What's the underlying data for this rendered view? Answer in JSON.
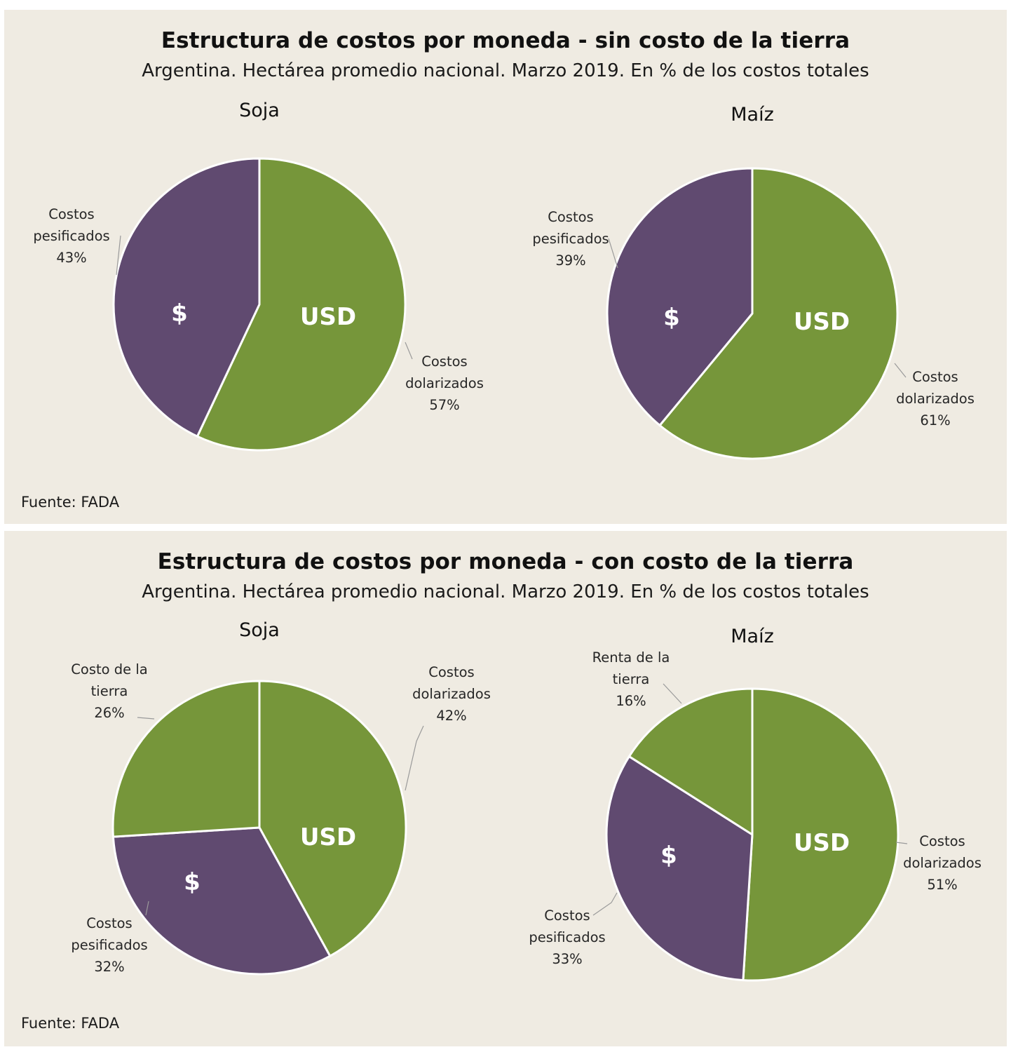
{
  "panels": [
    {
      "title": "Estructura de costos por moneda - sin costo de la tierra",
      "subtitle": "Argentina. Hectárea promedio nacional. Marzo 2019. En % de los costos totales",
      "source": "Fuente: FADA"
    },
    {
      "title": "Estructura de costos por moneda - con costo de la tierra",
      "subtitle": "Argentina. Hectárea promedio nacional. Marzo 2019. En % de los costos totales",
      "source": "Fuente: FADA"
    }
  ],
  "colors": {
    "green": "#76963a",
    "purple": "#604a70",
    "panel_bg": "#efebe2"
  },
  "chart_data": [
    {
      "type": "pie",
      "panel": 0,
      "title": "Soja",
      "slices": [
        {
          "label": [
            "Costos",
            "dolarizados",
            "57%"
          ],
          "value": 57,
          "color": "green",
          "mark": "USD"
        },
        {
          "label": [
            "Costos",
            "pesificados",
            "43%"
          ],
          "value": 43,
          "color": "purple",
          "mark": "$"
        }
      ]
    },
    {
      "type": "pie",
      "panel": 0,
      "title": "Maíz",
      "slices": [
        {
          "label": [
            "Costos",
            "dolarizados",
            "61%"
          ],
          "value": 61,
          "color": "green",
          "mark": "USD"
        },
        {
          "label": [
            "Costos",
            "pesificados",
            "39%"
          ],
          "value": 39,
          "color": "purple",
          "mark": "$"
        }
      ]
    },
    {
      "type": "pie",
      "panel": 1,
      "title": "Soja",
      "slices": [
        {
          "label": [
            "Costos",
            "dolarizados",
            "42%"
          ],
          "value": 42,
          "color": "green",
          "mark": "USD"
        },
        {
          "label": [
            "Costos",
            "pesificados",
            "32%"
          ],
          "value": 32,
          "color": "purple",
          "mark": "$"
        },
        {
          "label": [
            "Costo de la",
            "tierra",
            "26%"
          ],
          "value": 26,
          "color": "green",
          "mark": ""
        }
      ]
    },
    {
      "type": "pie",
      "panel": 1,
      "title": "Maíz",
      "slices": [
        {
          "label": [
            "Costos",
            "dolarizados",
            "51%"
          ],
          "value": 51,
          "color": "green",
          "mark": "USD"
        },
        {
          "label": [
            "Costos",
            "pesificados",
            "33%"
          ],
          "value": 33,
          "color": "purple",
          "mark": "$"
        },
        {
          "label": [
            "Renta de la",
            "tierra",
            "16%"
          ],
          "value": 16,
          "color": "green",
          "mark": ""
        }
      ]
    }
  ]
}
